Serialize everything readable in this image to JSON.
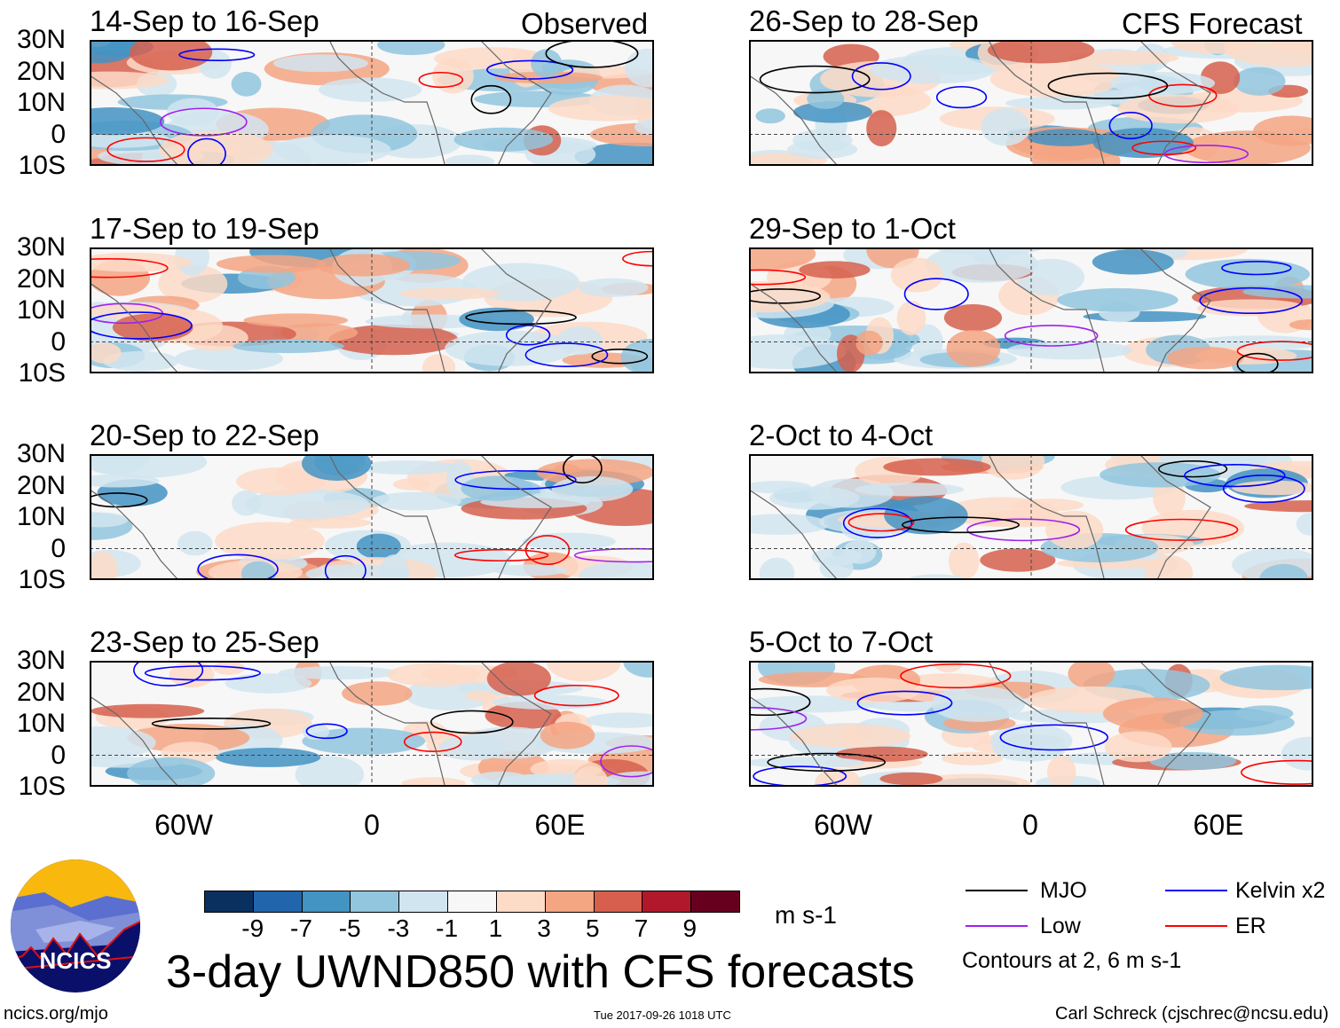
{
  "figure": {
    "title": "3-day UWND850 with CFS forecasts",
    "source_link": "ncics.org/mjo",
    "timestamp": "Tue 2017-09-26 1018 UTC",
    "author": "Carl Schreck (cjschrec@ncsu.edu)",
    "logo_text": "NCICS"
  },
  "columns": [
    {
      "label": "Observed",
      "lon_ticks": [
        "60W",
        "0",
        "60E"
      ]
    },
    {
      "label": "CFS Forecast",
      "lon_ticks": [
        "60W",
        "0",
        "60E"
      ]
    }
  ],
  "lat_ticks": [
    "30N",
    "20N",
    "10N",
    "0",
    "10S"
  ],
  "panels": [
    {
      "title": "14-Sep to 16-Sep",
      "column": 0,
      "row": 0
    },
    {
      "title": "17-Sep to 19-Sep",
      "column": 0,
      "row": 1
    },
    {
      "title": "20-Sep to 22-Sep",
      "column": 0,
      "row": 2
    },
    {
      "title": "23-Sep to 25-Sep",
      "column": 0,
      "row": 3
    },
    {
      "title": "26-Sep to 28-Sep",
      "column": 1,
      "row": 0
    },
    {
      "title": "29-Sep to 1-Oct",
      "column": 1,
      "row": 1
    },
    {
      "title": "2-Oct to 4-Oct",
      "column": 1,
      "row": 2
    },
    {
      "title": "5-Oct to 7-Oct",
      "column": 1,
      "row": 3
    }
  ],
  "colorbar": {
    "units": "m s-1",
    "labels": [
      "-9",
      "-7",
      "-5",
      "-3",
      "-1",
      "1",
      "3",
      "5",
      "7",
      "9"
    ],
    "colors": [
      "#0a3060",
      "#2166ac",
      "#4393c3",
      "#92c5de",
      "#d1e5f0",
      "#f7f7f7",
      "#fddbc7",
      "#f4a582",
      "#d6604d",
      "#b2182b",
      "#67001f"
    ]
  },
  "legend": {
    "items": [
      {
        "label": "MJO",
        "color": "#000000"
      },
      {
        "label": "Kelvin x2",
        "color": "#0000ff"
      },
      {
        "label": "Low",
        "color": "#a020f0"
      },
      {
        "label": "ER",
        "color": "#ff0000"
      }
    ],
    "note": "Contours at 2, 6 m s-1"
  }
}
